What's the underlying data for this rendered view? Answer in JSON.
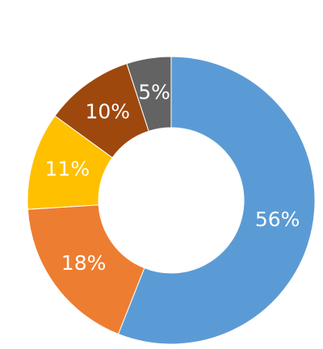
{
  "chart_data": {
    "type": "donut",
    "values": [
      56,
      18,
      11,
      10,
      5
    ],
    "value_labels": [
      "56%",
      "18%",
      "11%",
      "10%",
      "5%"
    ],
    "colors": [
      "#5b9bd5",
      "#ed7d31",
      "#ffc000",
      "#9e480e",
      "#636363"
    ]
  }
}
